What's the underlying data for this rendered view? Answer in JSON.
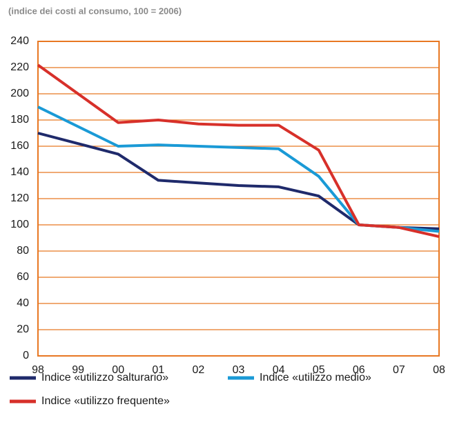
{
  "chart_data": {
    "type": "line",
    "subtitle": "(indice dei costi al consumo, 100 = 2006)",
    "categories": [
      "98",
      "99",
      "00",
      "01",
      "02",
      "03",
      "04",
      "05",
      "06",
      "07",
      "08"
    ],
    "series": [
      {
        "name": "Indice «utilizzo salturario»",
        "color": "#1f2a6b",
        "values": [
          170,
          162,
          154,
          134,
          132,
          130,
          129,
          122,
          100,
          98,
          97
        ]
      },
      {
        "name": "Indice «utilizzo medio»",
        "color": "#1a9ad6",
        "values": [
          190,
          175,
          160,
          161,
          160,
          159,
          158,
          137,
          100,
          98,
          95
        ]
      },
      {
        "name": "Indice «utilizzo frequente»",
        "color": "#d7302a",
        "values": [
          222,
          200,
          178,
          180,
          177,
          176,
          176,
          157,
          100,
          98,
          91
        ]
      }
    ],
    "ylim": [
      0,
      240
    ],
    "yticks": [
      0,
      20,
      40,
      60,
      80,
      100,
      120,
      140,
      160,
      180,
      200,
      220,
      240
    ],
    "grid": true,
    "grid_color": "#e87722"
  }
}
